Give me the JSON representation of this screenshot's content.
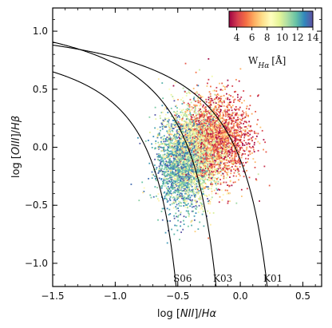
{
  "chart_data": {
    "type": "scatter",
    "title": "",
    "xlabel": "log [NII]/Hα",
    "ylabel": "log [OIII]/Hβ",
    "xlim": [
      -1.5,
      0.65
    ],
    "ylim": [
      -1.2,
      1.2
    ],
    "xticks": [
      -1.5,
      -1.0,
      -0.5,
      0.0,
      0.5
    ],
    "xtick_labels": [
      "−1.5",
      "−1.0",
      "−0.5",
      "0.0",
      "0.5"
    ],
    "yticks": [
      -1.0,
      -0.5,
      0.0,
      0.5,
      1.0
    ],
    "ytick_labels": [
      "−1.0",
      "−0.5",
      "0.0",
      "0.5",
      "1.0"
    ],
    "grid": false,
    "colorbar": {
      "label": "W_Hα [Å]",
      "range": [
        3,
        14
      ],
      "ticks": [
        4,
        6,
        8,
        10,
        12,
        14
      ],
      "tick_labels": [
        "4",
        "6",
        "8",
        "10",
        "12",
        "14"
      ],
      "colormap": "Spectral",
      "placement": "top-right"
    },
    "curves": [
      {
        "name": "K01",
        "equation": "0.61/(x-0.47)+1.19",
        "x_asymptote": 0.47
      },
      {
        "name": "K03",
        "equation": "0.61/(x-0.05)+1.3",
        "x_asymptote": 0.05
      },
      {
        "name": "S06",
        "equation": "-30.787+1.1358x+0.27297tan^-1[(x+0.08)*(-1.0)]"
      }
    ],
    "point_clouds": [
      {
        "description": "high W_Hα",
        "center": [
          -0.47,
          -0.15
        ],
        "spread": [
          0.1,
          0.2
        ],
        "color_value_range": [
          11,
          14
        ]
      },
      {
        "description": "intermediate W_Hα",
        "center": [
          -0.37,
          -0.05
        ],
        "spread": [
          0.12,
          0.2
        ],
        "color_value_range": [
          7,
          11
        ]
      },
      {
        "description": "low W_Hα",
        "center": [
          -0.18,
          0.08
        ],
        "spread": [
          0.13,
          0.18
        ],
        "color_value_range": [
          3,
          7
        ]
      }
    ]
  }
}
